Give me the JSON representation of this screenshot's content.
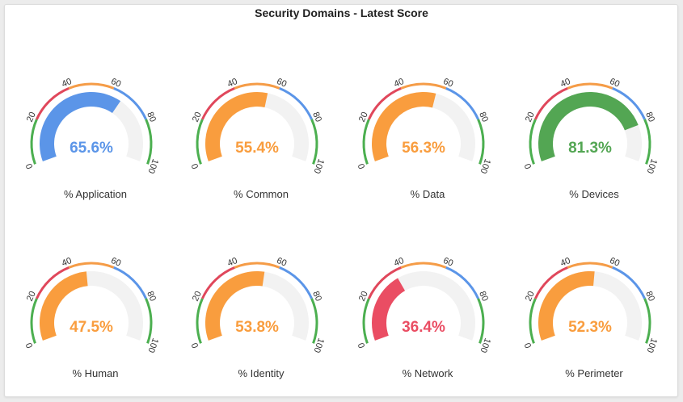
{
  "title": "Security Domains - Latest Score",
  "chart_data": {
    "type": "gauge",
    "range": [
      0,
      100
    ],
    "tick_labels": [
      "0",
      "20",
      "40",
      "60",
      "80",
      "100"
    ],
    "bands": [
      {
        "from": 0,
        "to": 20,
        "color": "#4caf50"
      },
      {
        "from": 20,
        "to": 40,
        "color": "#e0475b"
      },
      {
        "from": 40,
        "to": 60,
        "color": "#f59c47"
      },
      {
        "from": 60,
        "to": 80,
        "color": "#5b95e8"
      },
      {
        "from": 80,
        "to": 100,
        "color": "#4caf50"
      }
    ],
    "gauges": [
      {
        "label": "% Application",
        "value": 65.6,
        "display": "65.6%",
        "color": "#5b95e8"
      },
      {
        "label": "% Common",
        "value": 55.4,
        "display": "55.4%",
        "color": "#f99d3e"
      },
      {
        "label": "% Data",
        "value": 56.3,
        "display": "56.3%",
        "color": "#f99d3e"
      },
      {
        "label": "% Devices",
        "value": 81.3,
        "display": "81.3%",
        "color": "#53a653"
      },
      {
        "label": "% Human",
        "value": 47.5,
        "display": "47.5%",
        "color": "#f99d3e"
      },
      {
        "label": "% Identity",
        "value": 53.8,
        "display": "53.8%",
        "color": "#f99d3e"
      },
      {
        "label": "% Network",
        "value": 36.4,
        "display": "36.4%",
        "color": "#ea4d63"
      },
      {
        "label": "% Perimeter",
        "value": 52.3,
        "display": "52.3%",
        "color": "#f99d3e"
      }
    ],
    "track_color": "#f2f2f2"
  }
}
